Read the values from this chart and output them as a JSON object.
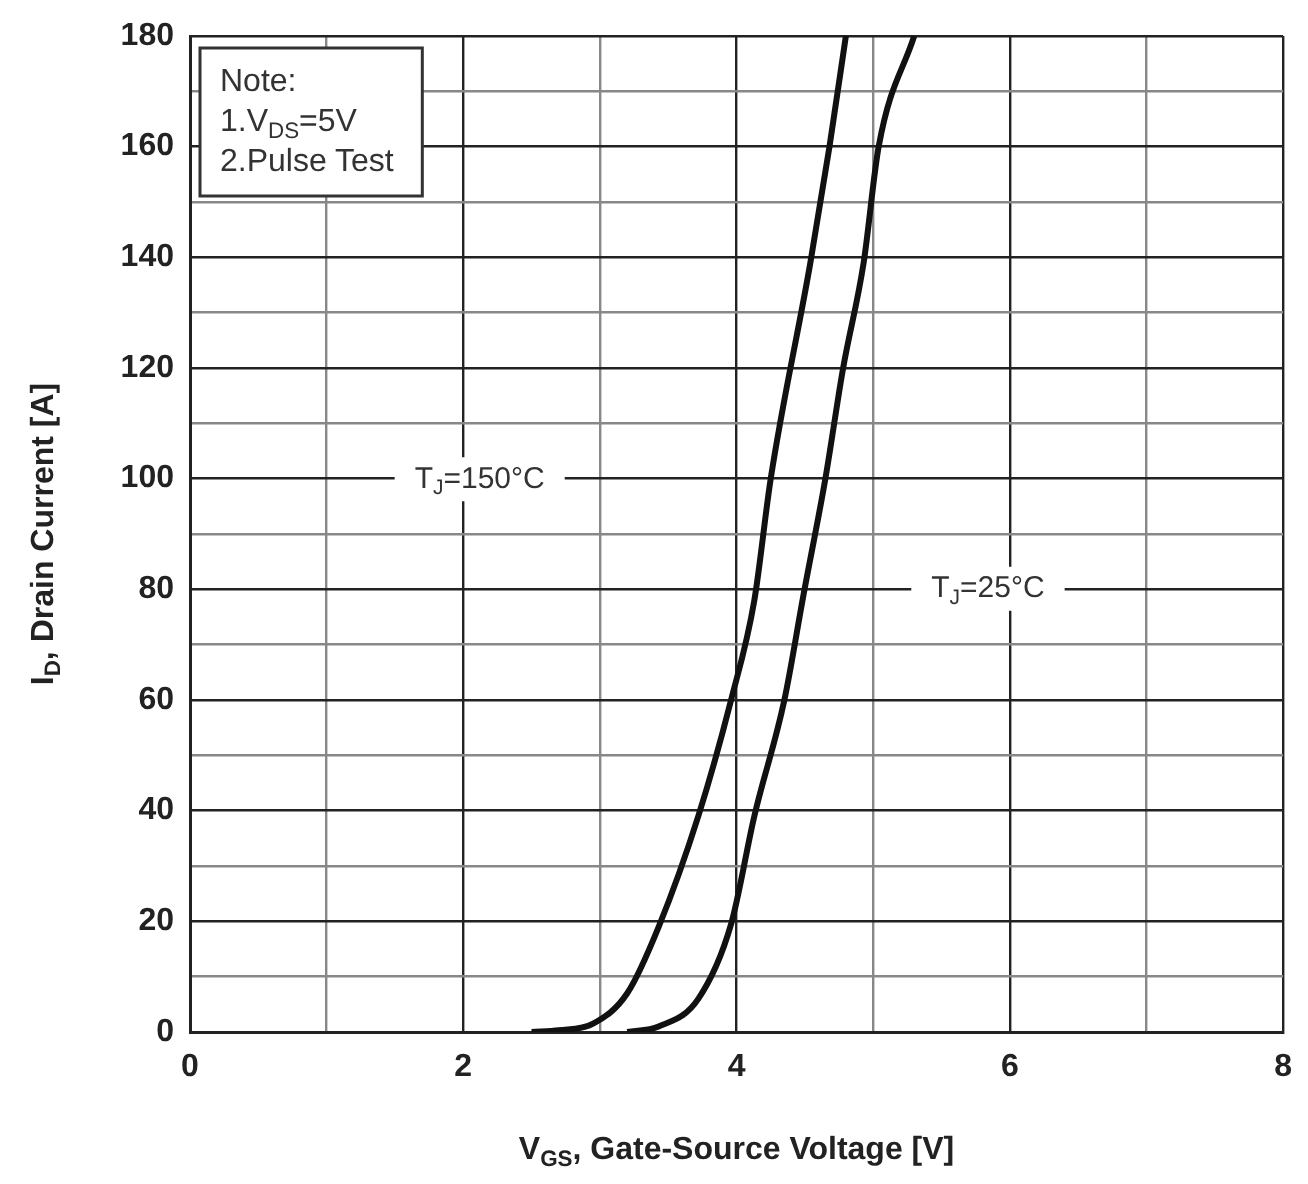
{
  "chart_data": {
    "type": "line",
    "xlabel": "V$_{GS}$, Gate-Source Voltage [V]",
    "ylabel": "I$_{D}$, Drain Current [A]",
    "xlim": [
      0,
      8
    ],
    "ylim": [
      0,
      180
    ],
    "xticks": [
      0,
      {
        "value": 1,
        "label": null
      },
      2,
      {
        "value": 3,
        "label": null
      },
      4,
      {
        "value": 5,
        "label": null
      },
      6,
      {
        "value": 7,
        "label": null
      },
      8
    ],
    "yticks": [
      0,
      {
        "value": 10,
        "label": null
      },
      20,
      {
        "value": 30,
        "label": null
      },
      40,
      {
        "value": 50,
        "label": null
      },
      60,
      {
        "value": 70,
        "label": null
      },
      80,
      {
        "value": 90,
        "label": null
      },
      100,
      {
        "value": 110,
        "label": null
      },
      120,
      {
        "value": 130,
        "label": null
      },
      140,
      {
        "value": 150,
        "label": null
      },
      160,
      {
        "value": 170,
        "label": null
      },
      180
    ],
    "grid": true,
    "legend": false,
    "marker": "none",
    "line_style": "solid",
    "series": [
      {
        "color": "#111111",
        "x": [
          2.5,
          2.7,
          2.95,
          3.2,
          3.43,
          3.72,
          3.96,
          4.13,
          4.25,
          4.54,
          4.68,
          4.8
        ],
        "values": [
          0,
          0.3,
          1.5,
          7,
          19,
          39,
          60,
          78,
          100,
          139,
          160,
          180
        ]
      },
      {
        "color": "#111111",
        "x": [
          3.2,
          3.43,
          3.72,
          3.96,
          4.13,
          4.35,
          4.49,
          4.65,
          4.78,
          4.93,
          5.04,
          5.3
        ],
        "values": [
          0,
          1,
          6,
          19.5,
          39,
          60,
          79,
          100,
          120,
          139,
          160,
          180
        ]
      }
    ],
    "annotations": [
      "T$_{J}$=150°C",
      "T$_{J}$=25°C",
      "Note:",
      "1.V$_{DS}$=5V",
      "2.Pulse Test"
    ]
  }
}
